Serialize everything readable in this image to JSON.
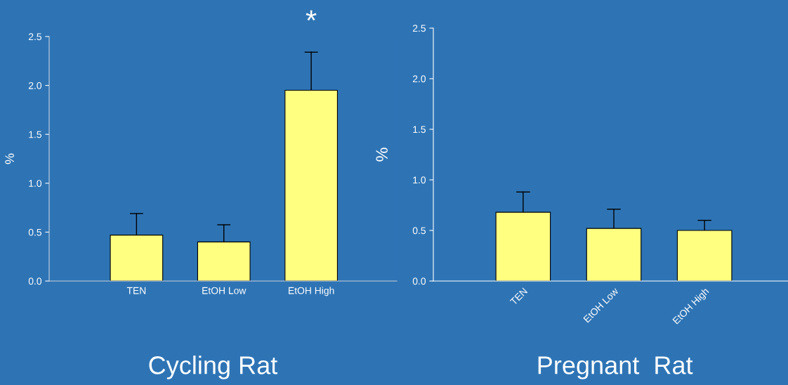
{
  "chart_data": [
    {
      "type": "bar",
      "title": "Cycling Rat",
      "ylabel": "%",
      "categories": [
        "TEN",
        "EtOH Low",
        "EtOH High"
      ],
      "values": [
        0.47,
        0.4,
        1.95
      ],
      "errors": [
        [
          0.47,
          0.69
        ],
        [
          0.4,
          0.575
        ],
        [
          1.95,
          2.34
        ]
      ],
      "color": "#ffff80",
      "ylim": [
        0,
        2.5
      ],
      "yticks": [
        {
          "value": 0,
          "label": "0.0"
        },
        0.5,
        {
          "value": 1,
          "label": "1.0"
        },
        1.5,
        {
          "value": 2,
          "label": "2.0"
        },
        2.5
      ],
      "annotations": [
        "*"
      ],
      "grid": false
    },
    {
      "type": "bar",
      "title": "Pregnant  Rat",
      "ylabel": "%",
      "categories": [
        "TEN",
        "EtOH Low",
        "EtOH High"
      ],
      "values": [
        0.68,
        0.52,
        0.5
      ],
      "errors": [
        [
          0.68,
          0.88
        ],
        [
          0.52,
          0.71
        ],
        [
          0.5,
          0.6
        ]
      ],
      "color": "#ffff80",
      "ylim": [
        0,
        2.5
      ],
      "yticks": [
        {
          "value": 0,
          "label": "0.0"
        },
        0.5,
        {
          "value": 1,
          "label": "1.0"
        },
        1.5,
        {
          "value": 2,
          "label": "2.0"
        },
        2.5
      ],
      "grid": false
    }
  ]
}
